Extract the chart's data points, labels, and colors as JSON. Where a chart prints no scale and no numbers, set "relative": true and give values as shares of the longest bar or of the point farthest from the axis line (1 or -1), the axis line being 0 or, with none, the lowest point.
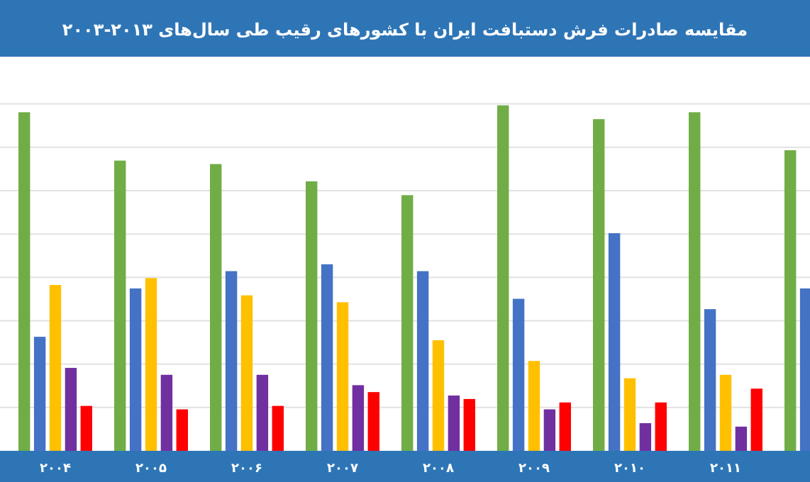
{
  "chart_data": {
    "type": "bar",
    "title": "مقایسه صادرات فرش دستبافت ایران با کشورهای رقیب طی سال‌های ۲۰۱۳-۲۰۰۳",
    "categories": [
      "۲۰۰۴",
      "۲۰۰۵",
      "۲۰۰۶",
      "۲۰۰۷",
      "۲۰۰۸",
      "۲۰۰۹",
      "۲۰۱۰",
      "۲۰۱۱",
      null
    ],
    "relative": true,
    "grid": true,
    "series": [
      {
        "color": "#70ad47",
        "values": [
          0.98,
          0.84,
          0.83,
          0.78,
          0.74,
          1,
          0.96,
          0.98,
          0.87
        ]
      },
      {
        "color": "#4472c4",
        "values": [
          0.33,
          0.47,
          0.52,
          0.54,
          0.52,
          0.44,
          0.63,
          0.41,
          0.47
        ]
      },
      {
        "color": "#ffc000",
        "values": [
          0.48,
          0.5,
          0.45,
          0.43,
          0.32,
          0.26,
          0.21,
          0.22,
          null
        ]
      },
      {
        "color": "#7030a0",
        "values": [
          0.24,
          0.22,
          0.22,
          0.19,
          0.16,
          0.12,
          0.08,
          0.07,
          null
        ]
      },
      {
        "color": "#ff0000",
        "values": [
          0.13,
          0.12,
          0.13,
          0.17,
          0.15,
          0.14,
          0.14,
          0.18,
          null
        ]
      }
    ]
  }
}
